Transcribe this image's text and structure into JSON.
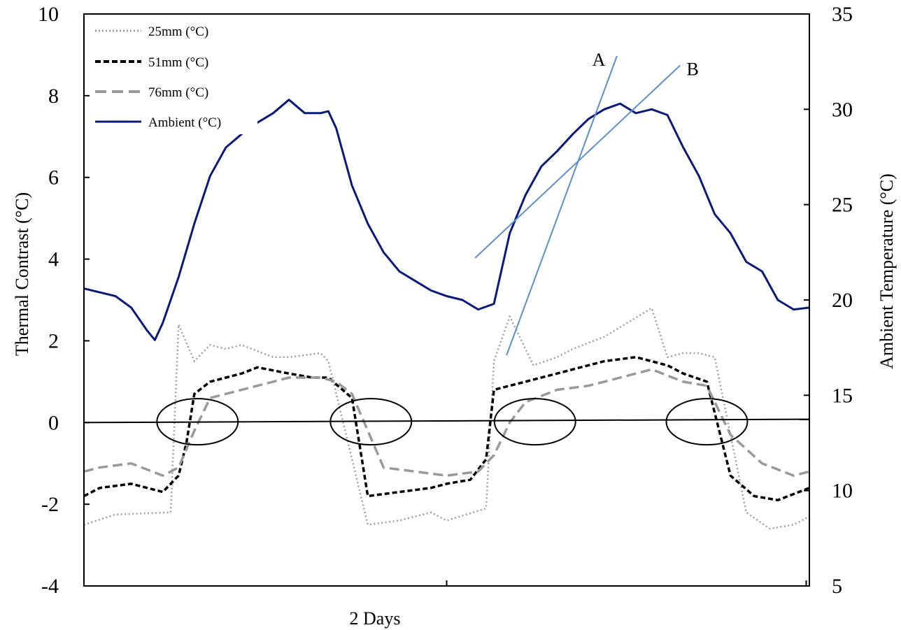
{
  "chart_data": {
    "type": "line",
    "xlabel": "2 Days",
    "ylabel_left": "Thermal Contrast  (°C)",
    "ylabel_right": "Ambient Temperature  (°C)",
    "ylim_left": [
      -4,
      10
    ],
    "ylim_right": [
      5,
      35
    ],
    "yticks_left": [
      "-4",
      "-2",
      "0",
      "2",
      "4",
      "6",
      "8",
      "10"
    ],
    "yticks_right": [
      "5",
      "10",
      "15",
      "20",
      "25",
      "30",
      "35"
    ],
    "xlim_days": [
      0,
      2.08
    ],
    "grid": false,
    "legend_position": "top-left",
    "colors": {
      "s25": "#9e9e9e",
      "s51": "#000000",
      "s76": "#9a9a9a",
      "ambient": "#0a1a7a",
      "tangent": "#5b8fd0",
      "zero": "#000000"
    },
    "series": [
      {
        "name": "25mm (°C)",
        "axis": "left",
        "style": "dotted",
        "points": [
          [
            0,
            -2.5
          ],
          [
            0.2,
            -2.25
          ],
          [
            0.55,
            -2.2
          ],
          [
            0.6,
            2.4
          ],
          [
            0.7,
            1.5
          ],
          [
            0.8,
            1.9
          ],
          [
            0.9,
            1.8
          ],
          [
            1.0,
            1.9
          ],
          [
            1.2,
            1.6
          ],
          [
            1.3,
            1.6
          ],
          [
            1.5,
            1.7
          ],
          [
            1.55,
            1.5
          ],
          [
            1.8,
            -2.5
          ],
          [
            2.0,
            -2.4
          ],
          [
            2.2,
            -2.2
          ],
          [
            2.3,
            -2.4
          ],
          [
            2.55,
            -2.1
          ],
          [
            2.6,
            1.5
          ],
          [
            2.7,
            2.6
          ],
          [
            2.85,
            1.4
          ],
          [
            3.0,
            1.6
          ],
          [
            3.1,
            1.8
          ],
          [
            3.3,
            2.1
          ],
          [
            3.6,
            2.8
          ],
          [
            3.7,
            1.6
          ],
          [
            3.8,
            1.7
          ],
          [
            3.9,
            1.7
          ],
          [
            4.0,
            1.6
          ],
          [
            4.2,
            -2.2
          ],
          [
            4.35,
            -2.6
          ],
          [
            4.5,
            -2.5
          ],
          [
            4.6,
            -2.3
          ]
        ]
      },
      {
        "name": "51mm (°C)",
        "axis": "left",
        "style": "dashed",
        "points": [
          [
            0,
            -1.8
          ],
          [
            0.1,
            -1.6
          ],
          [
            0.3,
            -1.5
          ],
          [
            0.5,
            -1.7
          ],
          [
            0.6,
            -1.3
          ],
          [
            0.65,
            -0.5
          ],
          [
            0.7,
            0.7
          ],
          [
            0.8,
            1.0
          ],
          [
            1.0,
            1.2
          ],
          [
            1.1,
            1.35
          ],
          [
            1.3,
            1.2
          ],
          [
            1.45,
            1.1
          ],
          [
            1.55,
            1.1
          ],
          [
            1.7,
            0.6
          ],
          [
            1.8,
            -1.8
          ],
          [
            2.0,
            -1.7
          ],
          [
            2.2,
            -1.6
          ],
          [
            2.3,
            -1.5
          ],
          [
            2.45,
            -1.4
          ],
          [
            2.55,
            -0.9
          ],
          [
            2.6,
            0.8
          ],
          [
            2.8,
            1.0
          ],
          [
            3.0,
            1.2
          ],
          [
            3.1,
            1.3
          ],
          [
            3.3,
            1.5
          ],
          [
            3.5,
            1.6
          ],
          [
            3.7,
            1.4
          ],
          [
            3.8,
            1.2
          ],
          [
            3.95,
            1.0
          ],
          [
            4.1,
            -1.3
          ],
          [
            4.25,
            -1.8
          ],
          [
            4.4,
            -1.9
          ],
          [
            4.6,
            -1.6
          ]
        ]
      },
      {
        "name": "76mm (°C)",
        "axis": "left",
        "style": "long-dashed",
        "points": [
          [
            0,
            -1.2
          ],
          [
            0.1,
            -1.1
          ],
          [
            0.3,
            -1.0
          ],
          [
            0.5,
            -1.3
          ],
          [
            0.6,
            -1.1
          ],
          [
            0.7,
            -0.2
          ],
          [
            0.8,
            0.6
          ],
          [
            1.0,
            0.8
          ],
          [
            1.2,
            1.0
          ],
          [
            1.3,
            1.1
          ],
          [
            1.5,
            1.1
          ],
          [
            1.6,
            1.0
          ],
          [
            1.7,
            0.7
          ],
          [
            1.8,
            -0.2
          ],
          [
            1.9,
            -1.1
          ],
          [
            2.1,
            -1.2
          ],
          [
            2.3,
            -1.3
          ],
          [
            2.5,
            -1.2
          ],
          [
            2.6,
            -0.8
          ],
          [
            2.7,
            0.0
          ],
          [
            2.8,
            0.5
          ],
          [
            3.0,
            0.8
          ],
          [
            3.2,
            0.9
          ],
          [
            3.5,
            1.2
          ],
          [
            3.6,
            1.3
          ],
          [
            3.8,
            1.0
          ],
          [
            3.95,
            0.9
          ],
          [
            4.1,
            -0.3
          ],
          [
            4.3,
            -1.0
          ],
          [
            4.5,
            -1.3
          ],
          [
            4.6,
            -1.2
          ]
        ]
      },
      {
        "name": "Ambient (°C)",
        "axis": "right",
        "style": "solid",
        "points": [
          [
            0,
            20.6
          ],
          [
            0.1,
            20.4
          ],
          [
            0.2,
            20.2
          ],
          [
            0.3,
            19.6
          ],
          [
            0.4,
            18.4
          ],
          [
            0.45,
            17.9
          ],
          [
            0.5,
            18.8
          ],
          [
            0.6,
            21.2
          ],
          [
            0.7,
            24.0
          ],
          [
            0.8,
            26.5
          ],
          [
            0.9,
            28.0
          ],
          [
            1.0,
            28.7
          ],
          [
            1.1,
            29.3
          ],
          [
            1.2,
            29.8
          ],
          [
            1.3,
            30.5
          ],
          [
            1.4,
            29.8
          ],
          [
            1.5,
            29.8
          ],
          [
            1.55,
            29.9
          ],
          [
            1.6,
            29.0
          ],
          [
            1.7,
            26.0
          ],
          [
            1.8,
            24.0
          ],
          [
            1.9,
            22.5
          ],
          [
            2.0,
            21.5
          ],
          [
            2.1,
            21.0
          ],
          [
            2.2,
            20.5
          ],
          [
            2.3,
            20.2
          ],
          [
            2.4,
            20.0
          ],
          [
            2.5,
            19.5
          ],
          [
            2.6,
            19.8
          ],
          [
            2.7,
            23.5
          ],
          [
            2.8,
            25.5
          ],
          [
            2.9,
            27.0
          ],
          [
            3.0,
            27.8
          ],
          [
            3.1,
            28.7
          ],
          [
            3.2,
            29.5
          ],
          [
            3.3,
            30.0
          ],
          [
            3.4,
            30.3
          ],
          [
            3.5,
            29.8
          ],
          [
            3.6,
            30.0
          ],
          [
            3.7,
            29.7
          ],
          [
            3.8,
            28.0
          ],
          [
            3.9,
            26.5
          ],
          [
            4.0,
            24.5
          ],
          [
            4.1,
            23.5
          ],
          [
            4.2,
            22.0
          ],
          [
            4.3,
            21.5
          ],
          [
            4.4,
            20.0
          ],
          [
            4.5,
            19.5
          ],
          [
            4.6,
            19.6
          ]
        ]
      },
      {
        "name": "",
        "axis": "left",
        "style": "zero-line",
        "points": [
          [
            0,
            0.0
          ],
          [
            4.6,
            0.08
          ]
        ]
      }
    ],
    "annotations": [
      {
        "label": "A",
        "kind": "tangent-line",
        "axis": "right",
        "points": [
          [
            2.68,
            17.1
          ],
          [
            3.38,
            32.8
          ]
        ]
      },
      {
        "label": "B",
        "kind": "tangent-line",
        "axis": "right",
        "points": [
          [
            2.48,
            22.2
          ],
          [
            3.78,
            32.3
          ]
        ]
      }
    ],
    "circled_crossings": [
      0.72,
      1.82,
      2.86,
      3.95
    ]
  }
}
